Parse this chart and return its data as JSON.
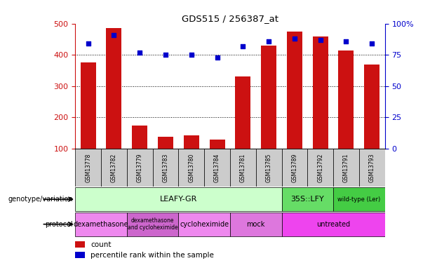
{
  "title": "GDS515 / 256387_at",
  "samples": [
    "GSM13778",
    "GSM13782",
    "GSM13779",
    "GSM13783",
    "GSM13780",
    "GSM13784",
    "GSM13781",
    "GSM13785",
    "GSM13789",
    "GSM13792",
    "GSM13791",
    "GSM13793"
  ],
  "counts": [
    375,
    487,
    173,
    138,
    143,
    130,
    330,
    430,
    475,
    460,
    415,
    370
  ],
  "percentiles": [
    84,
    91,
    77,
    75,
    75,
    73,
    82,
    86,
    88,
    87,
    86,
    84
  ],
  "ylim_left": [
    100,
    500
  ],
  "ylim_right": [
    0,
    100
  ],
  "yticks_left": [
    100,
    200,
    300,
    400,
    500
  ],
  "yticks_right": [
    0,
    25,
    50,
    75,
    100
  ],
  "bar_color": "#cc1111",
  "scatter_color": "#0000cc",
  "background_color": "#ffffff",
  "genotype_groups": [
    {
      "label": "LEAFY-GR",
      "start": 0,
      "end": 8,
      "color": "#ccffcc"
    },
    {
      "label": "35S::LFY",
      "start": 8,
      "end": 10,
      "color": "#66dd66"
    },
    {
      "label": "wild-type (Ler)",
      "start": 10,
      "end": 12,
      "color": "#44cc44"
    }
  ],
  "protocol_groups": [
    {
      "label": "dexamethasone",
      "start": 0,
      "end": 2,
      "color": "#ee88ee"
    },
    {
      "label": "dexamethasone\nand cycloheximide",
      "start": 2,
      "end": 4,
      "color": "#cc66cc"
    },
    {
      "label": "cycloheximide",
      "start": 4,
      "end": 6,
      "color": "#ee88ee"
    },
    {
      "label": "mock",
      "start": 6,
      "end": 8,
      "color": "#dd77dd"
    },
    {
      "label": "untreated",
      "start": 8,
      "end": 12,
      "color": "#ee44ee"
    }
  ],
  "legend_count_label": "count",
  "legend_percentile_label": "percentile rank within the sample",
  "genotype_label": "genotype/variation",
  "protocol_label": "protocol",
  "sample_box_color": "#cccccc",
  "gridline_vals": [
    200,
    300,
    400
  ]
}
